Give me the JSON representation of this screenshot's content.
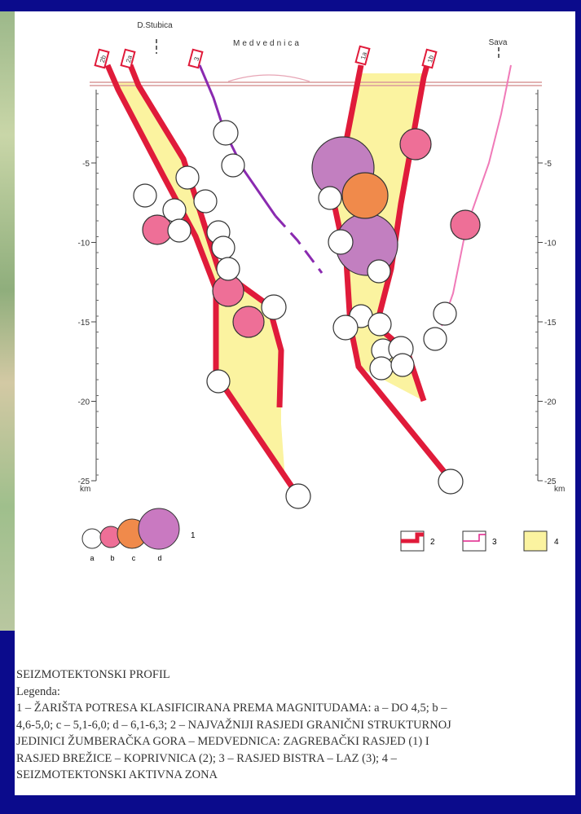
{
  "header": {
    "place_labels": [
      "D.Stubica",
      "Medvednica",
      "Sava"
    ],
    "fault_labels": [
      "2b",
      "2a",
      "3",
      "1a",
      "1b"
    ]
  },
  "axes": {
    "left_ticks": [
      "-5",
      "-10",
      "-15",
      "-20",
      "-25"
    ],
    "left_unit": "km",
    "right_ticks": [
      "-5",
      "-10",
      "-15",
      "-20",
      "-25"
    ],
    "right_unit": "km"
  },
  "legend": {
    "magnitude_classes": [
      "a",
      "b",
      "c",
      "d"
    ],
    "items": [
      "1",
      "2",
      "3",
      "4"
    ]
  },
  "caption": {
    "title": "SEIZMOTEKTONSKI PROFIL",
    "legend_heading": "Legenda:",
    "lines": [
      "1 – ŽARIŠTA POTRESA KLASIFICIRANA PREMA MAGNITUDAMA: a – DO 4,5; b –",
      "4,6-5,0; c – 5,1-6,0; d – 6,1-6,3; 2 – NAJVAŽNIJI RASJEDI GRANIČNI STRUKTURNOJ",
      "JEDINICI ŽUMBERAČKA GORA – MEDVEDNICA: ZAGREBAČKI RASJED (1) I",
      "RASJED BREŽICE – KOPRIVNICA (2); 3 – RASJED BISTRA – LAZ (3); 4 –",
      "SEIZMOTEKTONSKI AKTIVNA ZONA"
    ]
  }
}
